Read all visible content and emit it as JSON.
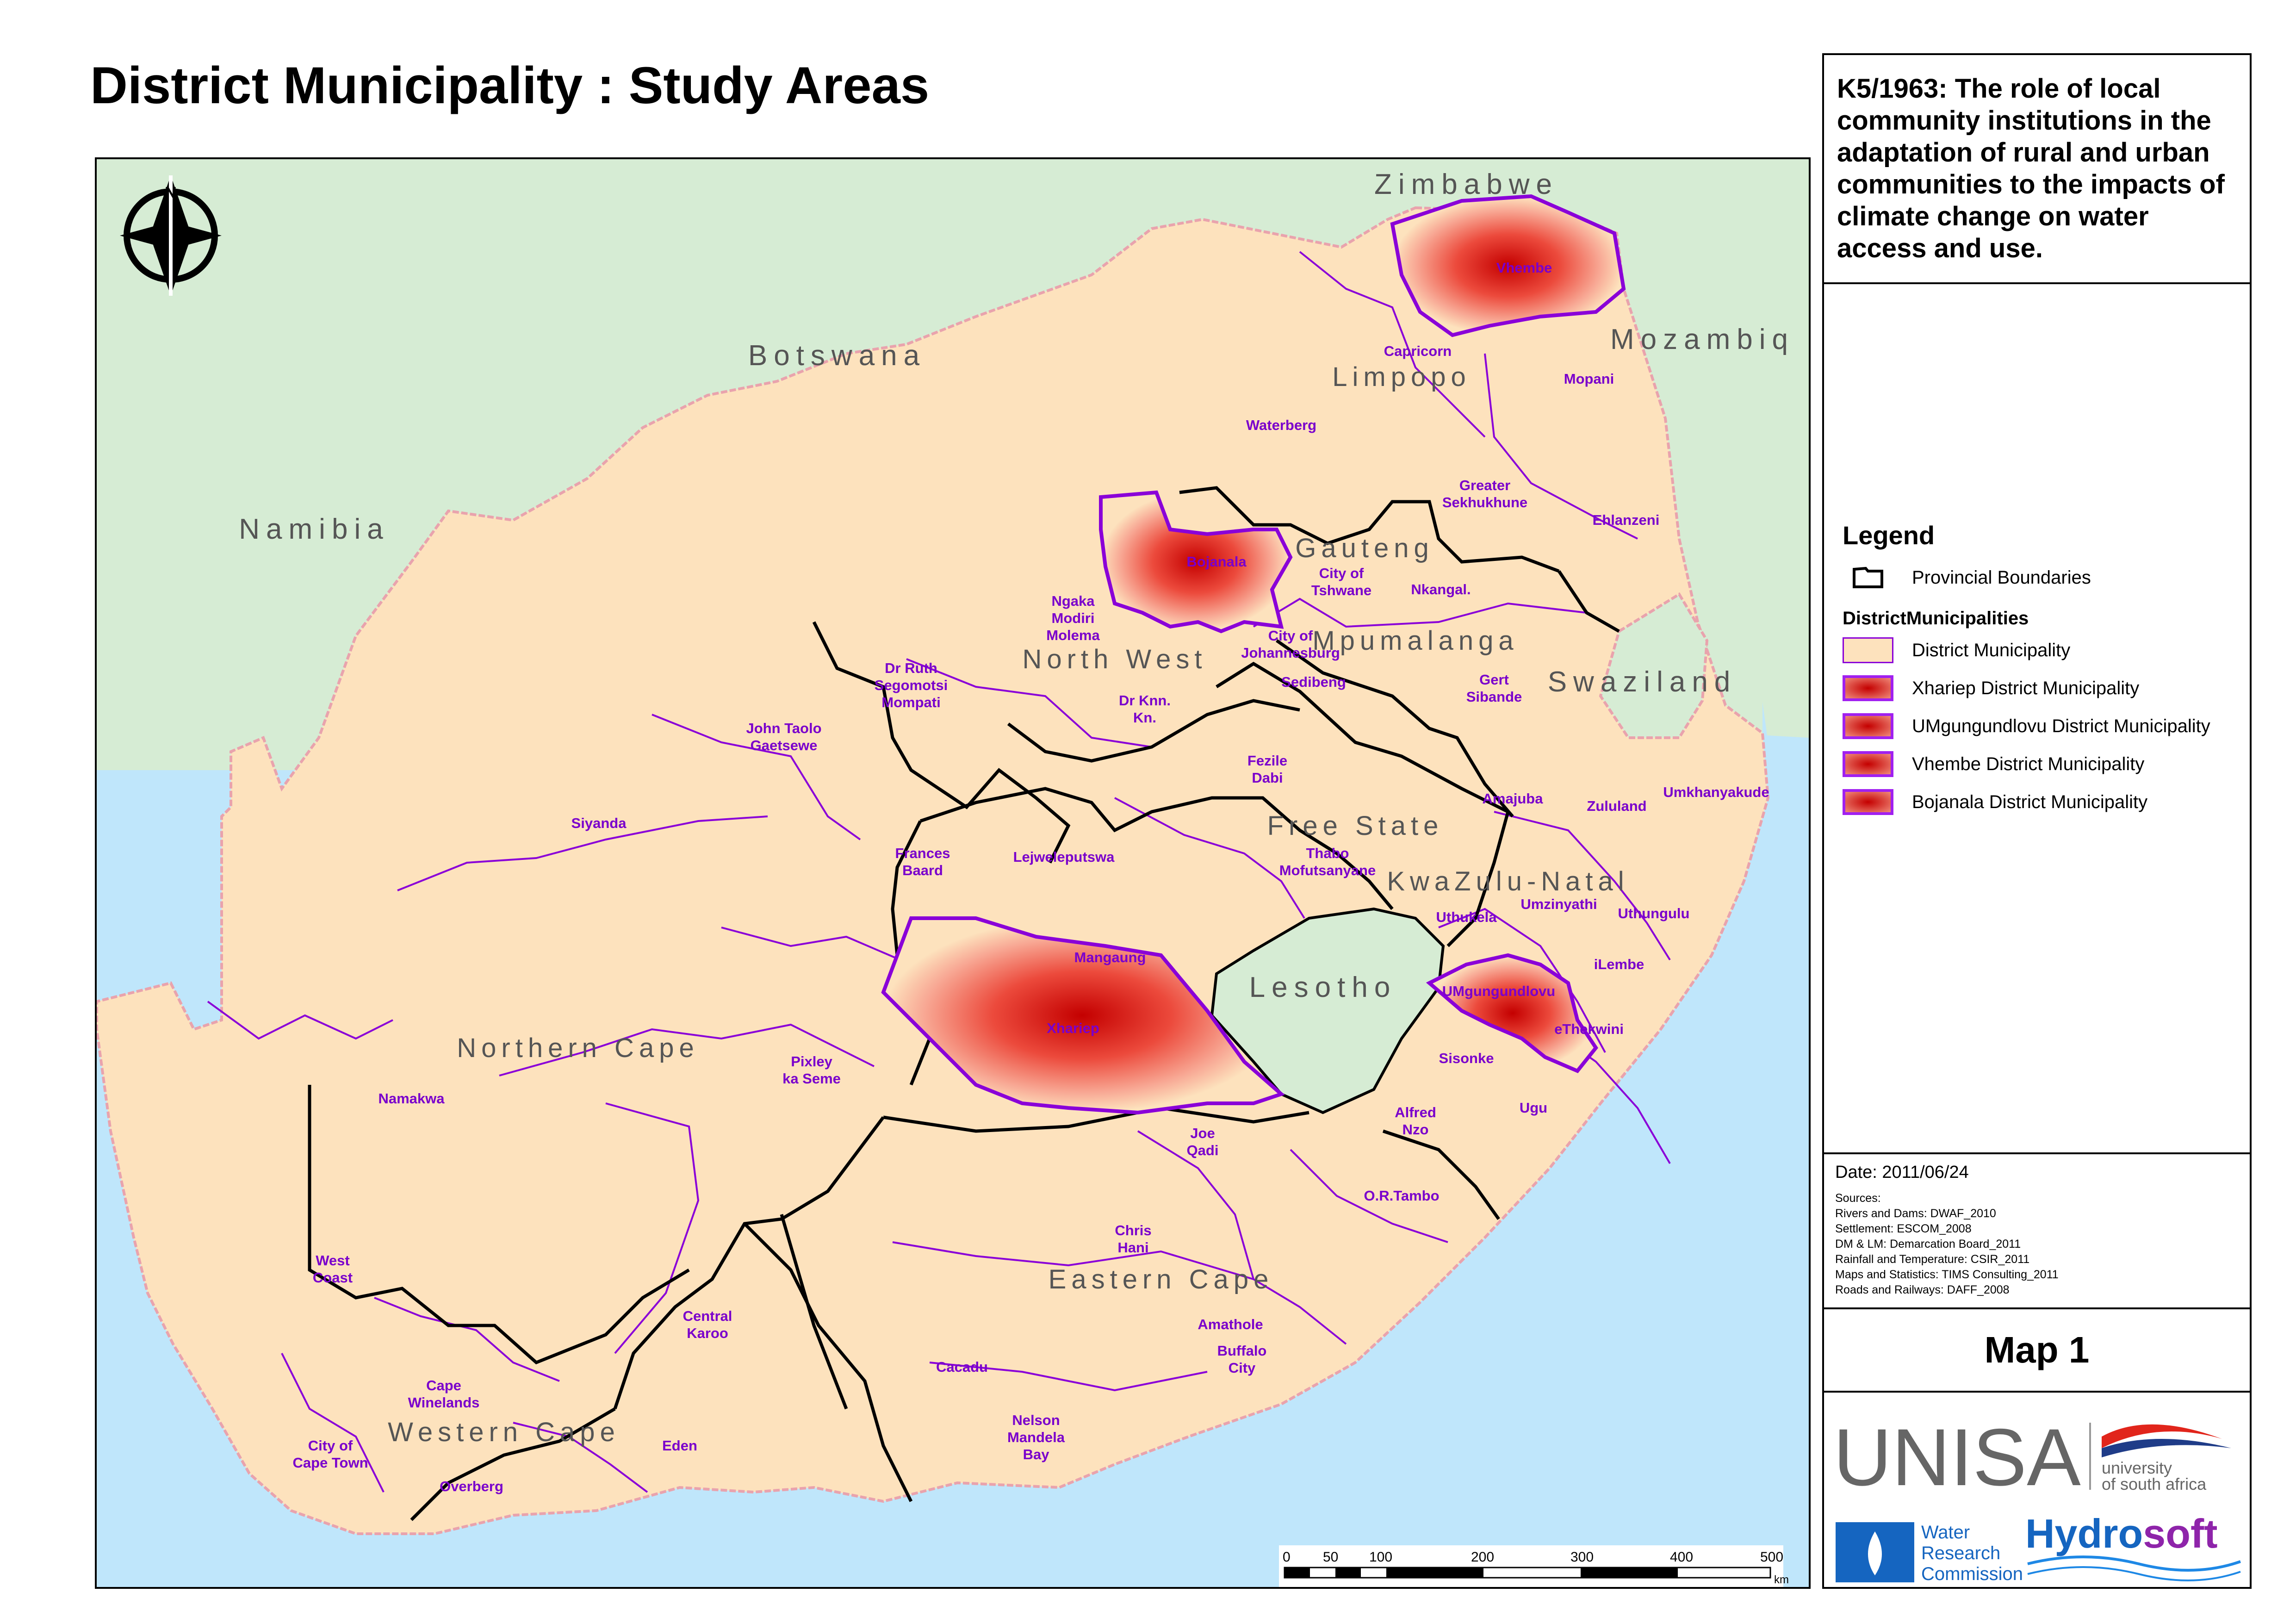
{
  "title": "District Municipality : Study Areas",
  "project": "K5/1963: The role of local community institutions in the adaptation of rural and urban communities to the impacts of climate change on water access and use.",
  "legend": {
    "title": "Legend",
    "provincial": "Provincial Boundaries",
    "group_title": "DistrictMunicipalities",
    "items": [
      "District Municipality",
      "Xhariep District Municipality",
      "UMgungundlovu District Municipality",
      "Vhembe District Municipality",
      "Bojanala District Municipality"
    ]
  },
  "date": "Date: 2011/06/24",
  "sources": [
    "Sources:",
    "Rivers and Dams:  DWAF_2010",
    "Settlement: ESCOM_2008",
    "DM & LM: Demarcation Board_2011",
    "Rainfall and Temperature: CSIR_2011",
    "Maps and Statistics: TIMS Consulting_2011",
    "Roads and Railways: DAFF_2008"
  ],
  "map_number": "Map 1",
  "logos": {
    "unisa": "UNISA",
    "unisa_sub1": "university",
    "unisa_sub2": "of south africa",
    "wrc1": "Water",
    "wrc2": "Research",
    "wrc3": "Commission",
    "hydro_a": "Hydro",
    "hydro_b": "soft"
  },
  "north_label": "N",
  "scale": {
    "ticks": [
      "0",
      "50",
      "100",
      "200",
      "300",
      "400",
      "500"
    ],
    "unit": "km"
  },
  "countries": {
    "zimbabwe": "Zimbabwe",
    "botswana": "Botswana",
    "namibia": "Namibia",
    "mozambique": "Mozambiq",
    "swaziland": "Swaziland",
    "lesotho": "Lesotho"
  },
  "provinces": {
    "limpopo": "Limpopo",
    "gauteng": "Gauteng",
    "north_west": "North West",
    "mpumalanga": "Mpumalanga",
    "free_state": "Free State",
    "kwazulu_natal": "KwaZulu-Natal",
    "northern_cape": "Northern Cape",
    "eastern_cape": "Eastern Cape",
    "western_cape": "Western Cape"
  },
  "districts": {
    "vhembe": "Vhembe",
    "capricorn": "Capricorn",
    "mopani": "Mopani",
    "waterberg": "Waterberg",
    "greater_sekhukhune_1": "Greater",
    "greater_sekhukhune_2": "Sekhukhune",
    "ehlanzeni": "Ehlanzeni",
    "bojanala": "Bojanala",
    "tshwane_1": "City of",
    "tshwane_2": "Tshwane",
    "nkangala": "Nkangal.",
    "ngaka_1": "Ngaka",
    "ngaka_2": "Modiri",
    "ngaka_3": "Molema",
    "joburg_1": "City of",
    "joburg_2": "Johannesburg",
    "sedibeng": "Sedibeng",
    "ruth_1": "Dr Ruth",
    "ruth_2": "Segomotsi",
    "ruth_3": "Mompati",
    "knn_1": "Dr Knn.",
    "knn_2": "Kn.",
    "gert_1": "Gert",
    "gert_2": "Sibande",
    "taolo_1": "John Taolo",
    "taolo_2": "Gaetsewe",
    "fezile_1": "Fezile",
    "fezile_2": "Dabi",
    "amajuba": "Amajuba",
    "zululand": "Zululand",
    "umkhanyakude": "Umkhanyakude",
    "siyanda": "Siyanda",
    "frances_1": "Frances",
    "frances_2": "Baard",
    "lejweleputswa": "Lejweleputswa",
    "thabo_1": "Thabo",
    "thabo_2": "Mofutsanyane",
    "umzinyathi": "Umzinyathi",
    "uthukela": "Uthukela",
    "uthungulu": "Uthungulu",
    "mangaung": "Mangaung",
    "ilembe": "iLembe",
    "umgungundlovu": "UMgungundlovu",
    "xhariep": "Xhariep",
    "ethekwini": "eThekwini",
    "sisonke": "Sisonke",
    "pixley_1": "Pixley",
    "pixley_2": "ka Seme",
    "namakwa": "Namakwa",
    "alfred_1": "Alfred",
    "alfred_2": "Nzo",
    "ugu": "Ugu",
    "joe_1": "Joe",
    "joe_2": "Qadi",
    "or_tambo": "O.R.Tambo",
    "chris_1": "Chris",
    "chris_2": "Hani",
    "west_1": "West",
    "west_2": "Coast",
    "karoo_1": "Central",
    "karoo_2": "Karoo",
    "amathole": "Amathole",
    "buffalo_1": "Buffalo",
    "buffalo_2": "City",
    "cacadu": "Cacadu",
    "winelands_1": "Cape",
    "winelands_2": "Winelands",
    "eden": "Eden",
    "nmb_1": "Nelson",
    "nmb_2": "Mandela",
    "nmb_3": "Bay",
    "cpt_1": "City of",
    "cpt_2": "Cape Town",
    "overberg": "Overberg"
  },
  "colors": {
    "ocean": "#bfe6fb",
    "neighbour": "#d6ecd4",
    "district": "#fde2bd",
    "district_line": "#8a00d8",
    "border_pink": "#e9a3ad",
    "study_area": "#e53935"
  }
}
